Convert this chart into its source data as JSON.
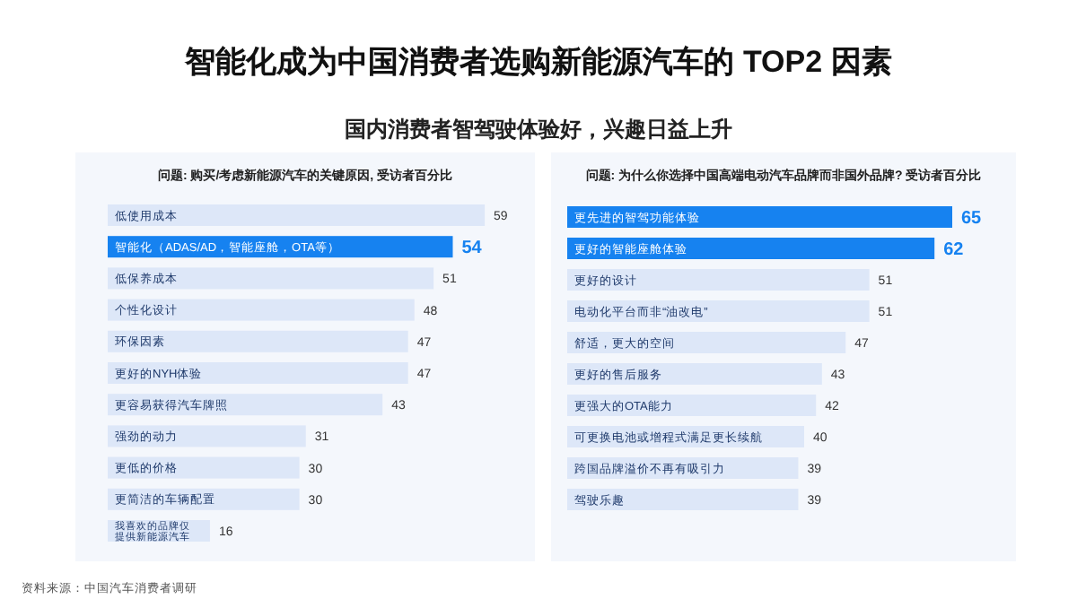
{
  "chart_data": [
    {
      "type": "other",
      "title": "智能化成为中国消费者选购新能源汽车的 TOP2 因素",
      "subtitle": "国内消费者智驾驶体验好，兴趣日益上升",
      "annotations": [
        "资料来源：中国汽车消费者调研"
      ]
    },
    {
      "type": "bar",
      "orientation": "horizontal",
      "data_labels": true,
      "title": "问题: 购买/考虑新能源汽车的关键原因, 受访者百分比",
      "categories": [
        "低使用成本",
        "智能化（ADAS/AD，智能座舱，OTA等）",
        "低保养成本",
        "个性化设计",
        "环保因素",
        "更好的NYH体验",
        "更容易获得汽车牌照",
        "强劲的动力",
        "更低的价格",
        "更简洁的车辆配置",
        "我喜欢的品牌仅提供新能源汽车"
      ],
      "values": [
        59,
        54,
        51,
        48,
        47,
        47,
        43,
        31,
        30,
        30,
        16
      ],
      "colors": [
        "#dde7f8",
        "#1682f0",
        "#dde7f8",
        "#dde7f8",
        "#dde7f8",
        "#dde7f8",
        "#dde7f8",
        "#dde7f8",
        "#dde7f8",
        "#dde7f8",
        "#dde7f8"
      ]
    },
    {
      "type": "bar",
      "orientation": "horizontal",
      "data_labels": true,
      "title": "问题: 为什么你选择中国高端电动汽车品牌而非国外品牌? 受访者百分比",
      "categories": [
        "更先进的智驾功能体验",
        "更好的智能座舱体验",
        "更好的设计",
        "电动化平台而非“油改电”",
        "舒适，更大的空间",
        "更好的售后服务",
        "更强大的OTA能力",
        "可更换电池或增程式满足更长续航",
        "跨国品牌溢价不再有吸引力",
        "驾驶乐趣"
      ],
      "values": [
        65,
        62,
        51,
        51,
        47,
        43,
        42,
        40,
        39,
        39
      ],
      "colors": [
        "#1682f0",
        "#1682f0",
        "#dde7f8",
        "#dde7f8",
        "#dde7f8",
        "#dde7f8",
        "#dde7f8",
        "#dde7f8",
        "#dde7f8",
        "#dde7f8"
      ]
    }
  ]
}
